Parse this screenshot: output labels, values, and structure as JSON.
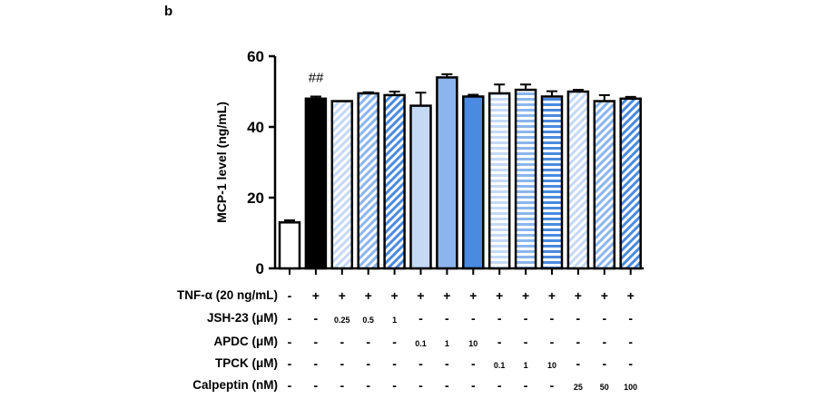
{
  "panel_label": "b",
  "chart_data": {
    "type": "bar",
    "ylabel": "MCP-1 level (ng/mL)",
    "xlabel": "",
    "ylim": [
      0,
      60
    ],
    "yticks": [
      0,
      20,
      40,
      60
    ],
    "annotations": [
      {
        "text": "##",
        "bar_index": 1
      }
    ],
    "bars": [
      {
        "value": 13.0,
        "error": 0.6,
        "fill": "#ffffff",
        "pattern": "none"
      },
      {
        "value": 48.0,
        "error": 0.6,
        "fill": "#000000",
        "pattern": "none"
      },
      {
        "value": 47.3,
        "error": 0.0,
        "fill": "#c5d9f5",
        "pattern": "diag"
      },
      {
        "value": 49.5,
        "error": 0.3,
        "fill": "#8bb5ec",
        "pattern": "diag"
      },
      {
        "value": 49.0,
        "error": 1.0,
        "fill": "#4a8ae0",
        "pattern": "diag"
      },
      {
        "value": 46.0,
        "error": 3.7,
        "fill": "#c5d9f5",
        "pattern": "none"
      },
      {
        "value": 54.0,
        "error": 0.9,
        "fill": "#8bb5ec",
        "pattern": "none"
      },
      {
        "value": 48.6,
        "error": 0.5,
        "fill": "#4a8ae0",
        "pattern": "none"
      },
      {
        "value": 49.5,
        "error": 2.5,
        "fill": "#c5d9f5",
        "pattern": "hlines"
      },
      {
        "value": 50.5,
        "error": 1.5,
        "fill": "#8bb5ec",
        "pattern": "hlines"
      },
      {
        "value": 48.6,
        "error": 1.5,
        "fill": "#4a8ae0",
        "pattern": "hlines"
      },
      {
        "value": 50.0,
        "error": 0.5,
        "fill": "#c5d9f5",
        "pattern": "diag"
      },
      {
        "value": 47.3,
        "error": 1.7,
        "fill": "#8bb5ec",
        "pattern": "diag"
      },
      {
        "value": 48.0,
        "error": 0.5,
        "fill": "#4a8ae0",
        "pattern": "diag"
      }
    ],
    "conditions": [
      {
        "label": "TNF-α (20 ng/mL)",
        "values": [
          "-",
          "+",
          "+",
          "+",
          "+",
          "+",
          "+",
          "+",
          "+",
          "+",
          "+",
          "+",
          "+",
          "+"
        ]
      },
      {
        "label": "JSH-23 (μM)",
        "values": [
          "-",
          "-",
          "0.25",
          "0.5",
          "1",
          "-",
          "-",
          "-",
          "-",
          "-",
          "-",
          "-",
          "-",
          "-"
        ]
      },
      {
        "label": "APDC (μM)",
        "values": [
          "-",
          "-",
          "-",
          "-",
          "-",
          "0.1",
          "1",
          "10",
          "-",
          "-",
          "-",
          "-",
          "-",
          "-"
        ]
      },
      {
        "label": "TPCK (μM)",
        "values": [
          "-",
          "-",
          "-",
          "-",
          "-",
          "-",
          "-",
          "-",
          "0.1",
          "1",
          "10",
          "-",
          "-",
          "-"
        ]
      },
      {
        "label": "Calpeptin (nM)",
        "values": [
          "-",
          "-",
          "-",
          "-",
          "-",
          "-",
          "-",
          "-",
          "-",
          "-",
          "-",
          "25",
          "50",
          "100"
        ]
      }
    ]
  }
}
